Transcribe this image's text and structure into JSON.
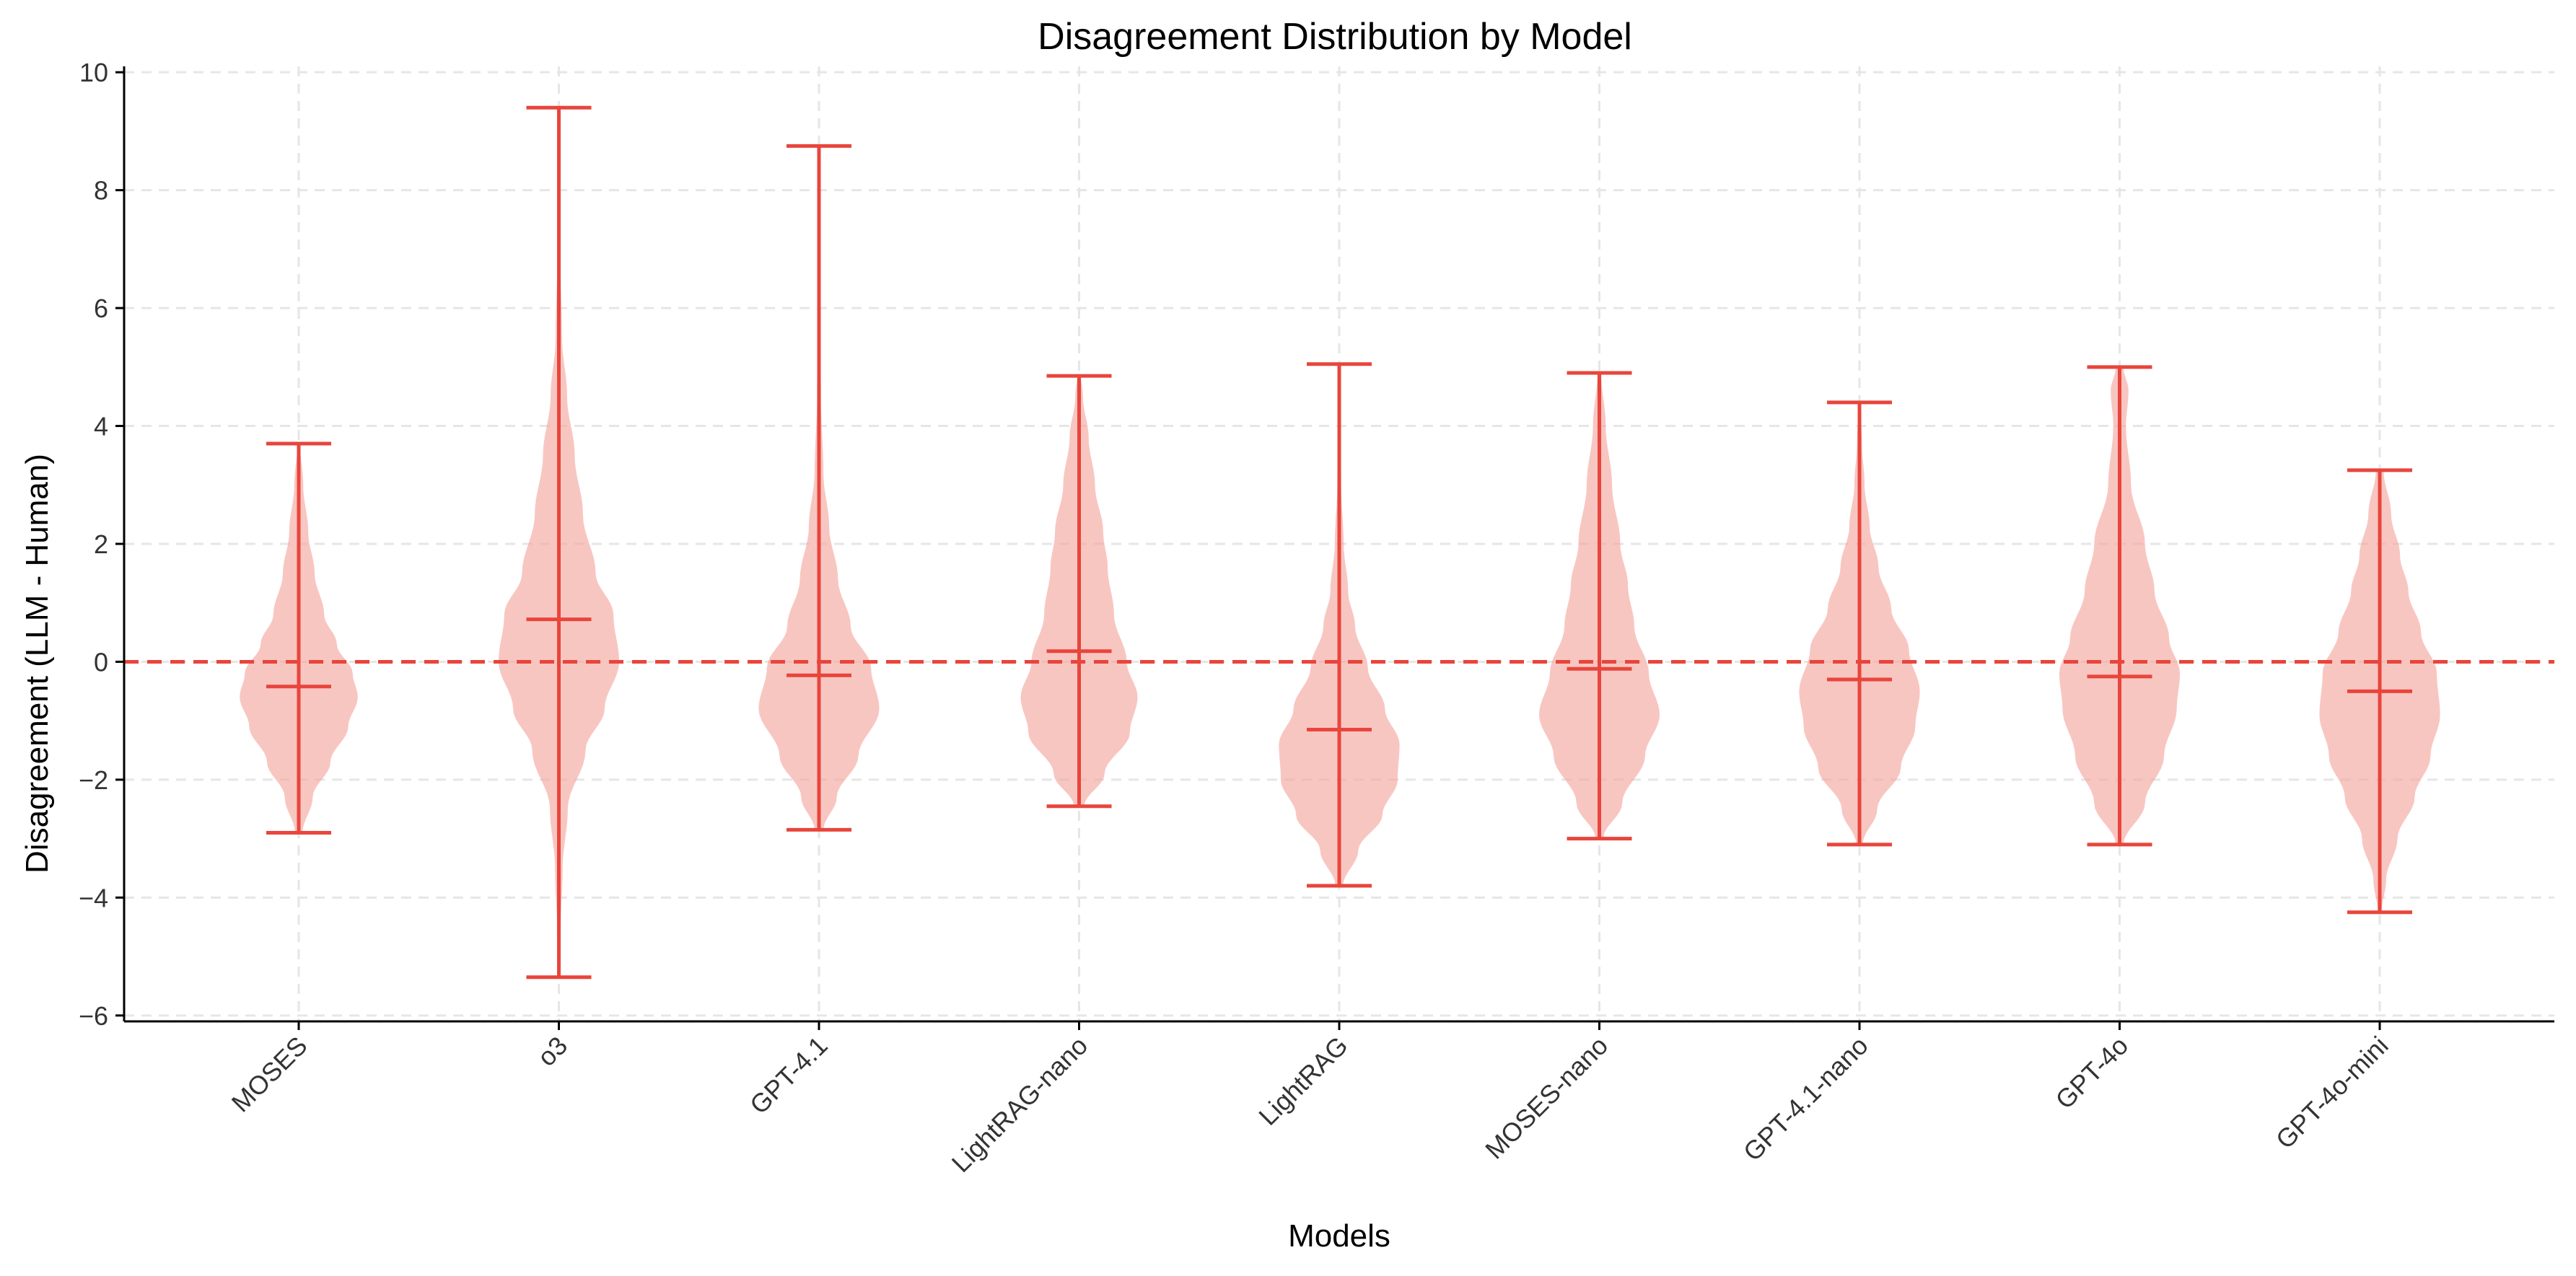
{
  "chart_data": {
    "type": "violin",
    "title": "Disagreement Distribution by Model",
    "xlabel": "Models",
    "ylabel": "Disagreement (LLM - Human)",
    "ylim": [
      -6.1,
      10.1
    ],
    "yticks": [
      -6,
      -4,
      -2,
      0,
      2,
      4,
      6,
      8,
      10
    ],
    "grid": true,
    "reference_line": {
      "y": 0,
      "style": "dashed",
      "color": "#e8453c"
    },
    "colors": {
      "line": "#e8453c",
      "fill": "#f4a79f"
    },
    "categories": [
      "MOSES",
      "o3",
      "GPT-4.1",
      "LightRAG-nano",
      "LightRAG",
      "MOSES-nano",
      "GPT-4.1-nano",
      "GPT-4o",
      "GPT-4o-mini"
    ],
    "series": [
      {
        "category": "MOSES",
        "min": -2.9,
        "max": 3.7,
        "mean": -0.42,
        "density": [
          [
            -2.9,
            0.06
          ],
          [
            -2.3,
            0.22
          ],
          [
            -1.7,
            0.5
          ],
          [
            -1.1,
            0.78
          ],
          [
            -0.6,
            0.93
          ],
          [
            -0.2,
            0.85
          ],
          [
            0.3,
            0.6
          ],
          [
            0.8,
            0.4
          ],
          [
            1.5,
            0.25
          ],
          [
            2.2,
            0.15
          ],
          [
            3.0,
            0.07
          ],
          [
            3.7,
            0.02
          ]
        ]
      },
      {
        "category": "o3",
        "min": -5.35,
        "max": 9.4,
        "mean": 0.72,
        "density": [
          [
            -5.35,
            0.01
          ],
          [
            -4.5,
            0.03
          ],
          [
            -3.5,
            0.06
          ],
          [
            -2.5,
            0.14
          ],
          [
            -1.5,
            0.42
          ],
          [
            -0.8,
            0.72
          ],
          [
            0.0,
            0.95
          ],
          [
            0.8,
            0.86
          ],
          [
            1.5,
            0.58
          ],
          [
            2.5,
            0.38
          ],
          [
            3.5,
            0.25
          ],
          [
            4.5,
            0.13
          ],
          [
            5.5,
            0.05
          ],
          [
            7.0,
            0.02
          ],
          [
            8.5,
            0.01
          ],
          [
            9.4,
            0.005
          ]
        ]
      },
      {
        "category": "GPT-4.1",
        "min": -2.85,
        "max": 8.75,
        "mean": -0.23,
        "density": [
          [
            -2.85,
            0.07
          ],
          [
            -2.3,
            0.28
          ],
          [
            -1.6,
            0.62
          ],
          [
            -0.8,
            0.95
          ],
          [
            -0.1,
            0.82
          ],
          [
            0.6,
            0.5
          ],
          [
            1.4,
            0.3
          ],
          [
            2.3,
            0.16
          ],
          [
            3.2,
            0.07
          ],
          [
            4.5,
            0.03
          ],
          [
            6.0,
            0.015
          ],
          [
            8.75,
            0.005
          ]
        ]
      },
      {
        "category": "LightRAG-nano",
        "min": -2.45,
        "max": 4.85,
        "mean": 0.18,
        "density": [
          [
            -2.45,
            0.08
          ],
          [
            -1.9,
            0.4
          ],
          [
            -1.2,
            0.8
          ],
          [
            -0.6,
            0.92
          ],
          [
            0.0,
            0.75
          ],
          [
            0.8,
            0.55
          ],
          [
            1.6,
            0.45
          ],
          [
            2.2,
            0.38
          ],
          [
            3.0,
            0.25
          ],
          [
            3.8,
            0.15
          ],
          [
            4.5,
            0.06
          ],
          [
            4.85,
            0.03
          ]
        ]
      },
      {
        "category": "LightRAG",
        "min": -3.8,
        "max": 5.05,
        "mean": -1.15,
        "density": [
          [
            -3.8,
            0.06
          ],
          [
            -3.2,
            0.3
          ],
          [
            -2.6,
            0.68
          ],
          [
            -2.0,
            0.92
          ],
          [
            -1.4,
            0.95
          ],
          [
            -0.8,
            0.72
          ],
          [
            -0.1,
            0.45
          ],
          [
            0.6,
            0.25
          ],
          [
            1.2,
            0.14
          ],
          [
            2.0,
            0.07
          ],
          [
            3.0,
            0.03
          ],
          [
            4.0,
            0.015
          ],
          [
            5.05,
            0.005
          ]
        ]
      },
      {
        "category": "MOSES-nano",
        "min": -3.0,
        "max": 4.9,
        "mean": -0.12,
        "density": [
          [
            -3.0,
            0.06
          ],
          [
            -2.4,
            0.36
          ],
          [
            -1.6,
            0.72
          ],
          [
            -0.9,
            0.95
          ],
          [
            -0.2,
            0.78
          ],
          [
            0.6,
            0.55
          ],
          [
            1.3,
            0.45
          ],
          [
            2.0,
            0.33
          ],
          [
            3.0,
            0.2
          ],
          [
            4.0,
            0.1
          ],
          [
            4.9,
            0.03
          ]
        ]
      },
      {
        "category": "GPT-4.1-nano",
        "min": -3.1,
        "max": 4.4,
        "mean": -0.3,
        "density": [
          [
            -3.1,
            0.05
          ],
          [
            -2.5,
            0.28
          ],
          [
            -1.8,
            0.65
          ],
          [
            -1.1,
            0.88
          ],
          [
            -0.5,
            0.95
          ],
          [
            0.2,
            0.78
          ],
          [
            0.9,
            0.5
          ],
          [
            1.6,
            0.3
          ],
          [
            2.3,
            0.16
          ],
          [
            3.0,
            0.08
          ],
          [
            3.7,
            0.04
          ],
          [
            4.4,
            0.015
          ]
        ]
      },
      {
        "category": "GPT-4o",
        "min": -3.1,
        "max": 5.0,
        "mean": -0.25,
        "density": [
          [
            -3.1,
            0.06
          ],
          [
            -2.4,
            0.4
          ],
          [
            -1.6,
            0.7
          ],
          [
            -0.8,
            0.9
          ],
          [
            -0.2,
            0.95
          ],
          [
            0.4,
            0.78
          ],
          [
            1.2,
            0.55
          ],
          [
            2.0,
            0.4
          ],
          [
            3.0,
            0.18
          ],
          [
            4.0,
            0.1
          ],
          [
            4.6,
            0.14
          ],
          [
            5.0,
            0.06
          ]
        ]
      },
      {
        "category": "GPT-4o-mini",
        "min": -4.25,
        "max": 3.25,
        "mean": -0.5,
        "density": [
          [
            -4.25,
            0.03
          ],
          [
            -3.7,
            0.1
          ],
          [
            -3.0,
            0.28
          ],
          [
            -2.3,
            0.55
          ],
          [
            -1.6,
            0.8
          ],
          [
            -0.9,
            0.95
          ],
          [
            -0.2,
            0.9
          ],
          [
            0.5,
            0.65
          ],
          [
            1.2,
            0.45
          ],
          [
            1.8,
            0.32
          ],
          [
            2.5,
            0.18
          ],
          [
            3.25,
            0.06
          ]
        ]
      }
    ]
  }
}
